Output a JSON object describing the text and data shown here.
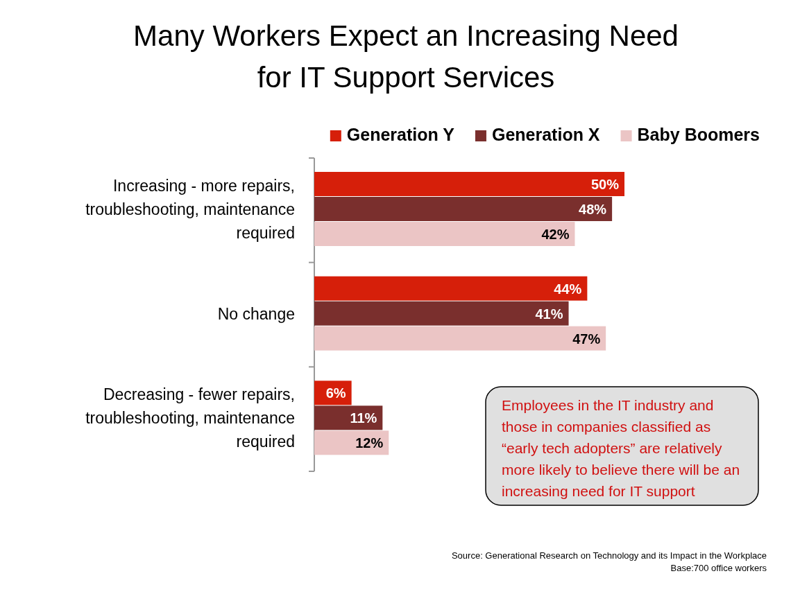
{
  "chart_data": {
    "type": "bar",
    "orientation": "horizontal",
    "title": "Many Workers Expect an Increasing Need for IT Support Services",
    "categories": [
      "Increasing - more repairs, troubleshooting, maintenance required",
      "No change",
      "Decreasing - fewer repairs, troubleshooting, maintenance required"
    ],
    "series": [
      {
        "name": "Generation Y",
        "color": "#d61f0a",
        "values": [
          50,
          44,
          6
        ],
        "value_labels": [
          "50%",
          "44%",
          "6%"
        ]
      },
      {
        "name": "Generation X",
        "color": "#7a2f2d",
        "values": [
          48,
          41,
          11
        ],
        "value_labels": [
          "48%",
          "41%",
          "11%"
        ]
      },
      {
        "name": "Baby Boomers",
        "color": "#ebc5c5",
        "values": [
          42,
          47,
          12
        ],
        "value_labels": [
          "42%",
          "47%",
          "12%"
        ]
      }
    ],
    "legend": "top right",
    "annotations": [
      "Employees in the IT industry and those in companies classified as “early tech adopters” are relatively more likely to believe there will be an increasing need for IT support",
      "Source: Generational Research on Technology and its Impact in the Workplace",
      "Base:700 office workers"
    ]
  }
}
